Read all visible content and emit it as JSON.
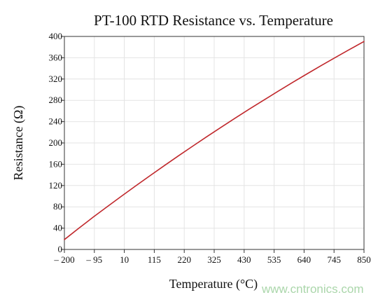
{
  "chart_data": {
    "type": "line",
    "title": "PT-100 RTD Resistance vs. Temperature",
    "xlabel": "Temperature (°C)",
    "ylabel": "Resistance (Ω)",
    "xlim": [
      -200,
      850
    ],
    "ylim": [
      0,
      400
    ],
    "x_ticks": [
      -200,
      -95,
      10,
      115,
      220,
      325,
      430,
      535,
      640,
      745,
      850
    ],
    "x_tick_labels": [
      "– 200",
      "– 95",
      "10",
      "115",
      "220",
      "325",
      "430",
      "535",
      "640",
      "745",
      "850"
    ],
    "y_ticks": [
      0,
      40,
      80,
      120,
      160,
      200,
      240,
      280,
      320,
      360,
      400
    ],
    "y_tick_labels": [
      "0",
      "40",
      "80",
      "120",
      "160",
      "200",
      "240",
      "280",
      "320",
      "360",
      "400"
    ],
    "grid": true,
    "legend": "none",
    "colors": {
      "line": "#c0282c",
      "grid": "#e4e4e4",
      "axis": "#333333"
    },
    "series": [
      {
        "x": [
          -200,
          -150,
          -100,
          -50,
          0,
          50,
          100,
          150,
          200,
          250,
          300,
          350,
          400,
          450,
          500,
          550,
          600,
          650,
          700,
          750,
          800,
          850
        ],
        "values": [
          18.5,
          39.7,
          60.3,
          80.3,
          100.0,
          119.4,
          138.5,
          157.3,
          175.9,
          194.1,
          212.1,
          229.7,
          247.1,
          264.2,
          280.9,
          297.4,
          313.7,
          329.6,
          345.3,
          360.6,
          375.7,
          390.5
        ]
      }
    ]
  },
  "watermark": "www.cntronics.com"
}
